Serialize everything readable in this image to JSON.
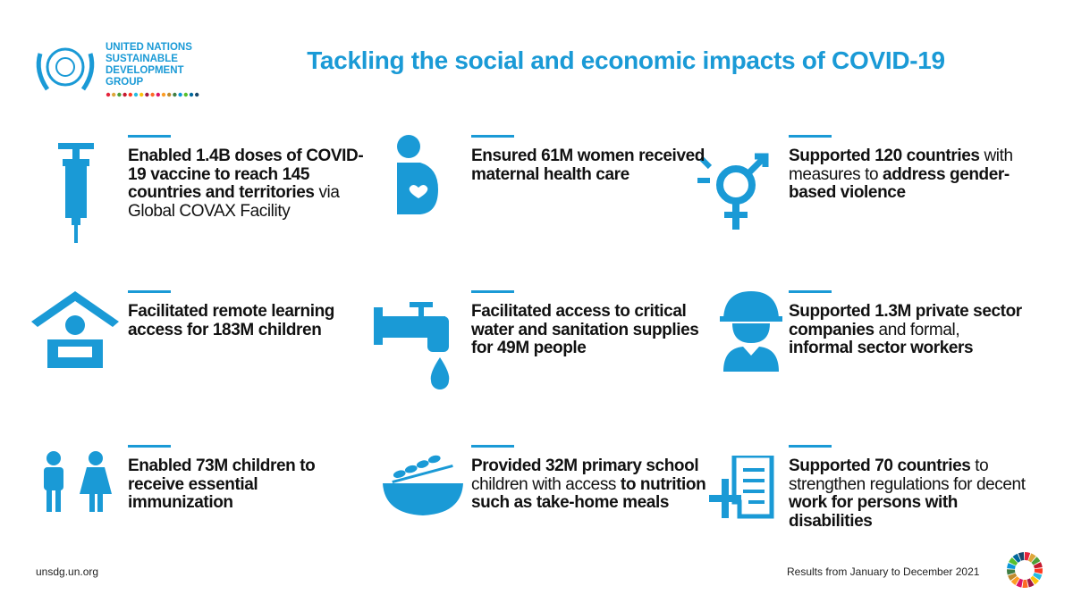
{
  "header": {
    "org": [
      "UNITED NATIONS",
      "SUSTAINABLE",
      "DEVELOPMENT",
      "GROUP"
    ],
    "title": "Tackling the social and economic impacts of COVID-19"
  },
  "cards": [
    {
      "text": [
        {
          "t": "Enabled 1.4B doses of COVID-19 vaccine to reach 145 countries and territories",
          "bold": true
        },
        {
          "t": " via Global COVAX Facility",
          "bold": false
        }
      ]
    },
    {
      "text": [
        {
          "t": "Ensured 61M women received maternal health care",
          "bold": true
        }
      ]
    },
    {
      "text": [
        {
          "t": "Supported 120 countries",
          "bold": true
        },
        {
          "t": " with measures to ",
          "bold": false
        },
        {
          "t": "address gender-based violence",
          "bold": true
        }
      ]
    },
    {
      "text": [
        {
          "t": "Facilitated remote learning access for 183M children",
          "bold": true
        }
      ]
    },
    {
      "text": [
        {
          "t": "Facilitated access to critical water and sanitation supplies for 49M people",
          "bold": true
        }
      ]
    },
    {
      "text": [
        {
          "t": "Supported 1.3M private sector companies",
          "bold": true
        },
        {
          "t": " and formal, ",
          "bold": false
        },
        {
          "t": "informal sector workers",
          "bold": true
        }
      ]
    },
    {
      "text": [
        {
          "t": "Enabled 73M children to receive essential immunization",
          "bold": true
        }
      ]
    },
    {
      "text": [
        {
          "t": "Provided 32M primary school",
          "bold": true
        },
        {
          "t": " children with access ",
          "bold": false
        },
        {
          "t": "to nutrition such as take-home meals",
          "bold": true
        }
      ]
    },
    {
      "text": [
        {
          "t": "Supported 70 countries",
          "bold": true
        },
        {
          "t": " to strengthen regulations for decent ",
          "bold": false
        },
        {
          "t": "work for persons with disabilities",
          "bold": true
        }
      ]
    }
  ],
  "footer": {
    "left": "unsdg.un.org",
    "right": "Results from January to December 2021"
  }
}
